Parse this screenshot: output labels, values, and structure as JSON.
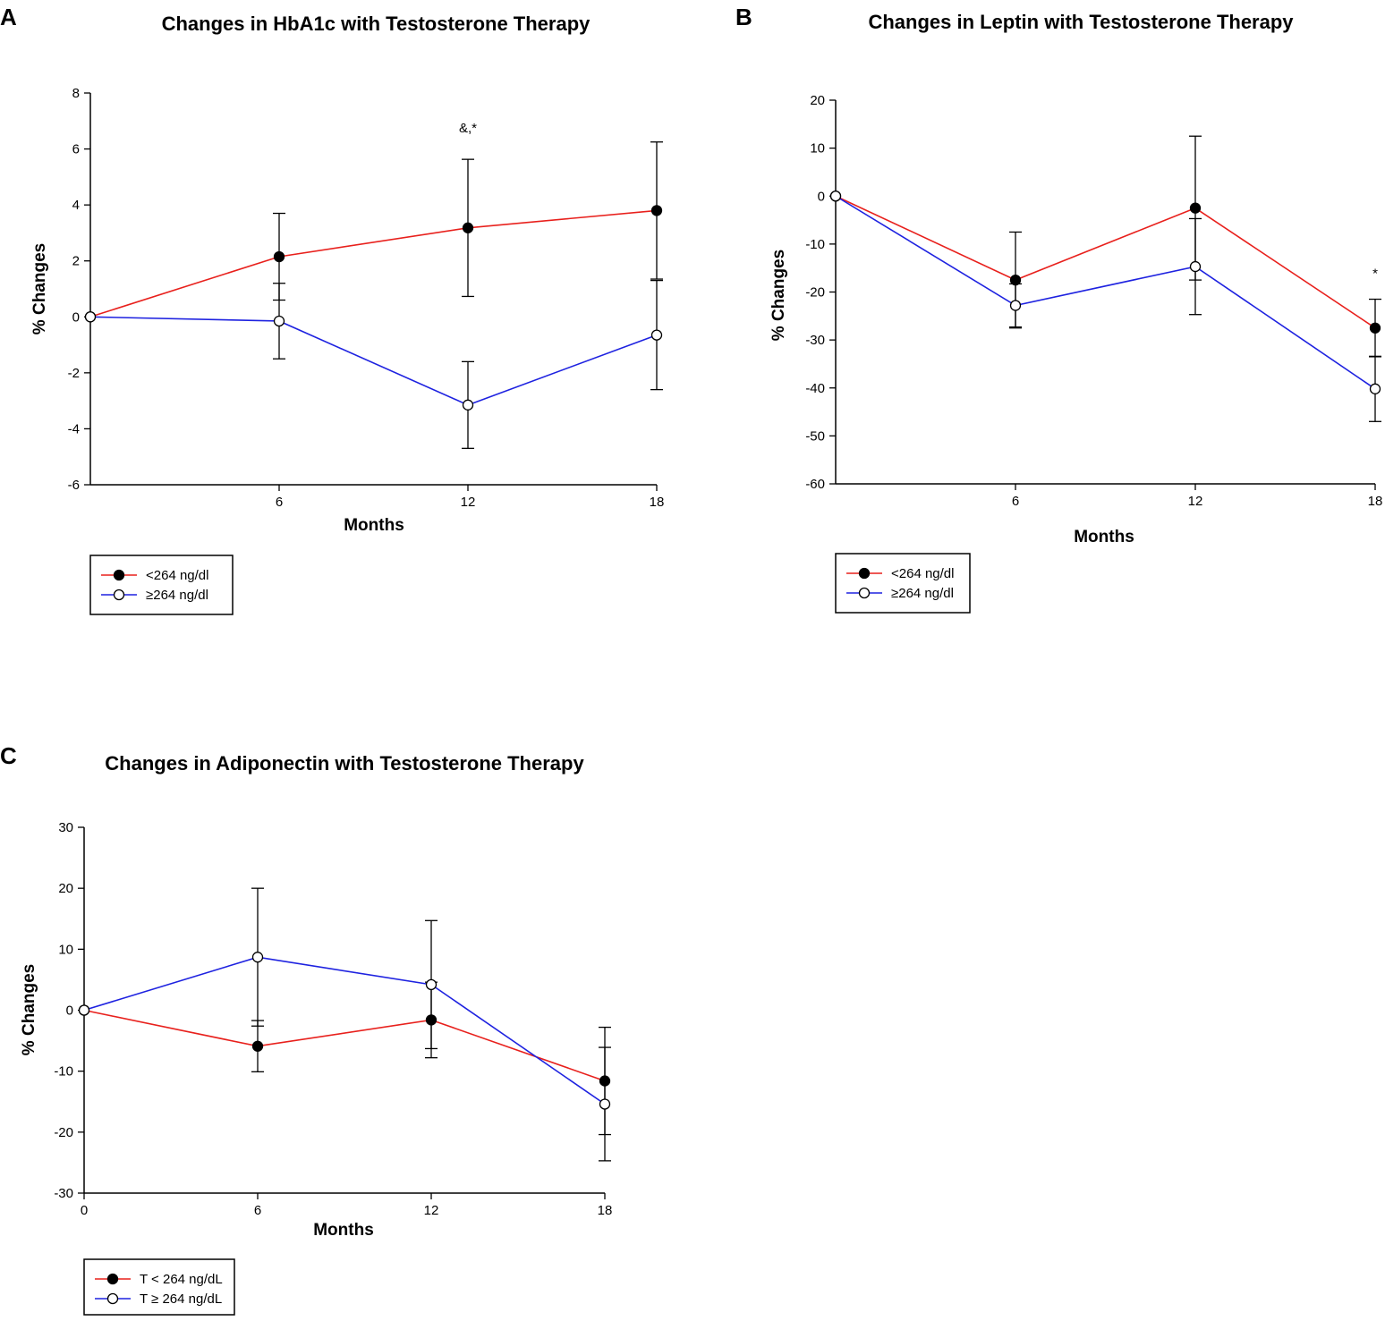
{
  "colors": {
    "series1": "#e8201c",
    "series2": "#1e22e0",
    "axis": "#000000"
  },
  "chart_data": [
    {
      "panel": "A",
      "type": "line",
      "title": "Changes in HbA1c with Testosterone Therapy",
      "xlabel": "Months",
      "ylabel": "% Changes",
      "xlim": [
        0,
        18
      ],
      "ylim": [
        -6,
        8
      ],
      "xticks": [
        6,
        12,
        18
      ],
      "xtick_labels": [
        "6",
        "12",
        "18"
      ],
      "yticks": [
        -6,
        -4,
        -2,
        0,
        2,
        4,
        6,
        8
      ],
      "ytick_labels": [
        "-6",
        "-4",
        "-2",
        "0",
        "2",
        "4",
        "6",
        "8"
      ],
      "x": [
        0,
        6,
        12,
        18
      ],
      "series": [
        {
          "name": "<264 ng/dl",
          "marker": "filled",
          "values": [
            0,
            2.15,
            3.18,
            3.8
          ],
          "err": [
            0,
            1.55,
            2.45,
            2.45
          ]
        },
        {
          "name": "≥264 ng/dl",
          "marker": "open",
          "values": [
            0,
            -0.15,
            -3.15,
            -0.65
          ],
          "err": [
            0,
            1.35,
            1.55,
            1.95
          ]
        }
      ],
      "annotations": [
        {
          "text": "&,*",
          "x": 12,
          "y": 6.6
        }
      ],
      "legend_position": "bottom-left"
    },
    {
      "panel": "B",
      "type": "line",
      "title": "Changes in Leptin with Testosterone Therapy",
      "xlabel": "Months",
      "ylabel": "% Changes",
      "xlim": [
        0,
        18
      ],
      "ylim": [
        -60,
        20
      ],
      "xticks": [
        6,
        12,
        18
      ],
      "xtick_labels": [
        "6",
        "12",
        "18"
      ],
      "yticks": [
        -60,
        -50,
        -40,
        -30,
        -20,
        -10,
        0,
        10,
        20
      ],
      "ytick_labels": [
        "-60",
        "-50",
        "-40",
        "-30",
        "-20",
        "-10",
        "0",
        "10",
        "20"
      ],
      "x": [
        0,
        6,
        12,
        18
      ],
      "series": [
        {
          "name": "<264 ng/dl",
          "marker": "filled",
          "values": [
            0,
            -17.5,
            -2.5,
            -27.5
          ],
          "err": [
            0,
            10,
            15,
            6
          ]
        },
        {
          "name": "≥264 ng/dl",
          "marker": "open",
          "values": [
            0,
            -22.8,
            -14.7,
            -40.2
          ],
          "err": [
            0,
            4.5,
            10,
            6.8
          ]
        }
      ],
      "annotations": [
        {
          "text": "*",
          "x": 18,
          "y": -17
        }
      ],
      "legend_position": "bottom-left"
    },
    {
      "panel": "C",
      "type": "line",
      "title": "Changes in Adiponectin with Testosterone Therapy",
      "xlabel": "Months",
      "ylabel": "% Changes",
      "xlim": [
        0,
        18
      ],
      "ylim": [
        -30,
        30
      ],
      "xticks": [
        0,
        6,
        12,
        18
      ],
      "xtick_labels": [
        "0",
        "6",
        "12",
        "18"
      ],
      "yticks": [
        -30,
        -20,
        -10,
        0,
        10,
        20,
        30
      ],
      "ytick_labels": [
        "-30",
        "-20",
        "-10",
        "0",
        "10",
        "20",
        "30"
      ],
      "x": [
        0,
        6,
        12,
        18
      ],
      "series": [
        {
          "name": "T < 264 ng/dL",
          "marker": "filled",
          "values": [
            0,
            -5.9,
            -1.6,
            -11.6
          ],
          "err": [
            0,
            4.2,
            6.2,
            8.8
          ]
        },
        {
          "name": "T ≥ 264 ng/dL",
          "marker": "open",
          "values": [
            0,
            8.7,
            4.2,
            -15.4
          ],
          "err": [
            0,
            11.3,
            10.5,
            9.3
          ]
        }
      ],
      "annotations": [],
      "legend_position": "bottom-left"
    }
  ]
}
